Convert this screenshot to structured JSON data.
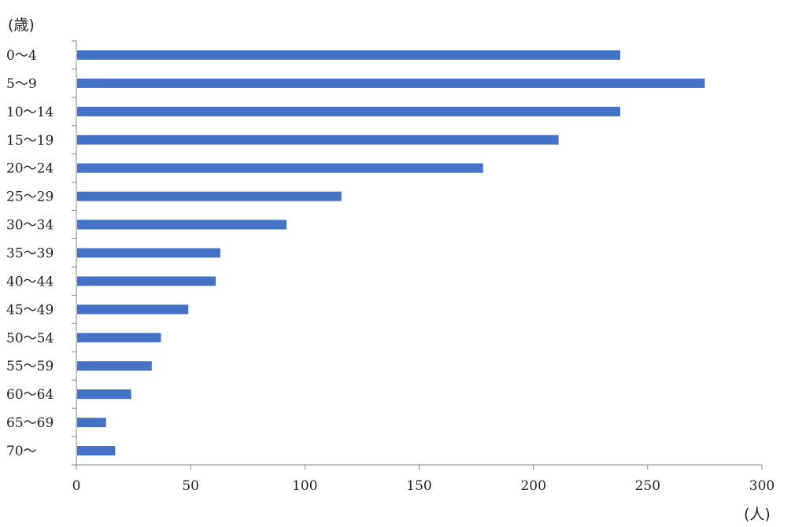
{
  "chart_data": {
    "type": "bar",
    "orientation": "horizontal",
    "title": "",
    "xlabel": "(人)",
    "ylabel": "(歳)",
    "categories": [
      "0～4",
      "5～9",
      "10～14",
      "15～19",
      "20～24",
      "25～29",
      "30～34",
      "35～39",
      "40～44",
      "45～49",
      "50～54",
      "55～59",
      "60～64",
      "65～69",
      "70～"
    ],
    "series": [
      {
        "values": [
          238,
          275,
          238,
          211,
          178,
          116,
          92,
          63,
          61,
          49,
          37,
          33,
          24,
          13,
          17
        ]
      }
    ],
    "xlim": [
      0,
      300
    ],
    "xticks": [
      0,
      50,
      100,
      150,
      200,
      250,
      300
    ],
    "grid": false,
    "legend": "none",
    "bar_color": "#4472c4",
    "axis_color": "#888888"
  }
}
